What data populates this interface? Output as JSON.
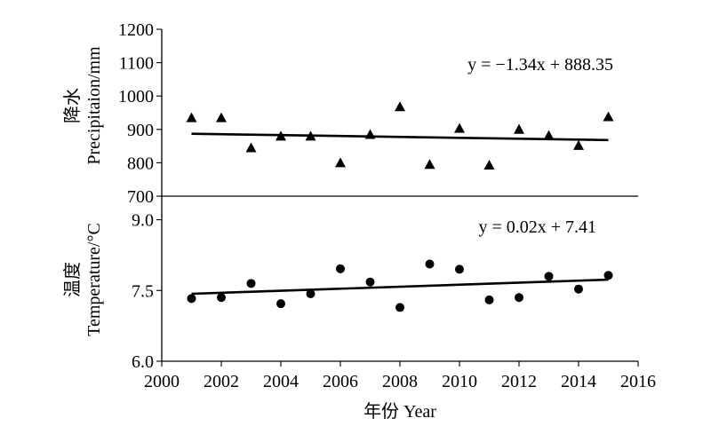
{
  "chart_data": [
    {
      "type": "scatter",
      "panel": "top",
      "ylabel_cn": "降水",
      "ylabel_en": "Precipitaion/mm",
      "ylim": [
        700,
        1200
      ],
      "yticks": [
        700,
        800,
        900,
        1000,
        1100,
        1200
      ],
      "ytick_labels": [
        "700",
        "800",
        "900",
        "1000",
        "1100",
        "1200"
      ],
      "marker": "triangle",
      "equation": "y = −1.34x + 888.35",
      "trend": {
        "x": [
          2001,
          2015
        ],
        "y": [
          887,
          868
        ]
      },
      "series": [
        {
          "x": [
            2001,
            2002,
            2003,
            2004,
            2005,
            2006,
            2007,
            2008,
            2009,
            2010,
            2011,
            2012,
            2013,
            2014,
            2015
          ],
          "values": [
            935,
            935,
            845,
            880,
            880,
            800,
            885,
            968,
            795,
            903,
            793,
            900,
            882,
            852,
            938
          ]
        }
      ]
    },
    {
      "type": "scatter",
      "panel": "bottom",
      "ylabel_cn": "温度",
      "ylabel_en": "Temperature/°C",
      "ylim": [
        6.0,
        9.5
      ],
      "yticks": [
        6.0,
        7.5,
        9.0
      ],
      "ytick_labels": [
        "6.0",
        "7.5",
        "9.0"
      ],
      "marker": "circle",
      "equation": "y = 0.02x + 7.41",
      "trend": {
        "x": [
          2001,
          2015
        ],
        "y": [
          7.43,
          7.73
        ]
      },
      "series": [
        {
          "x": [
            2001,
            2002,
            2003,
            2004,
            2005,
            2006,
            2007,
            2008,
            2009,
            2010,
            2011,
            2012,
            2013,
            2014,
            2015
          ],
          "values": [
            7.33,
            7.35,
            7.65,
            7.22,
            7.43,
            7.96,
            7.68,
            7.14,
            8.06,
            7.95,
            7.3,
            7.35,
            7.8,
            7.53,
            7.82
          ]
        }
      ]
    }
  ],
  "x_axis": {
    "xlim": [
      2000,
      2016
    ],
    "ticks": [
      2000,
      2002,
      2004,
      2006,
      2008,
      2010,
      2012,
      2014,
      2016
    ],
    "tick_labels": [
      "2000",
      "2002",
      "2004",
      "2006",
      "2008",
      "2010",
      "2012",
      "2014",
      "2016"
    ],
    "xlabel": "年份 Year"
  }
}
